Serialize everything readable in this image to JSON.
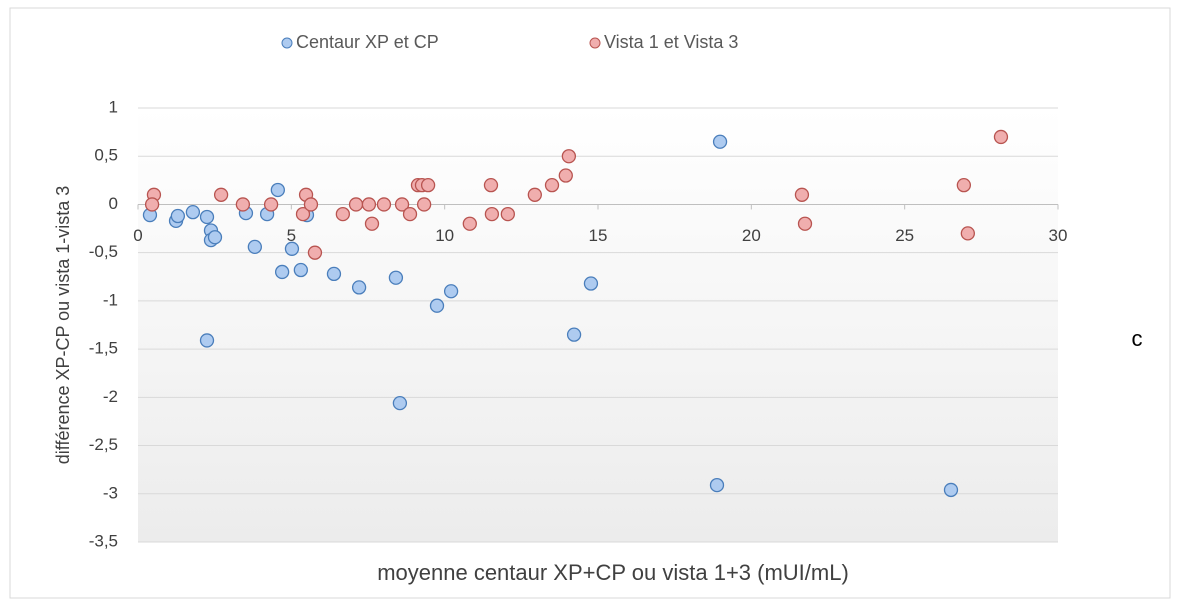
{
  "chart_data": {
    "type": "scatter",
    "xlabel": "moyenne centaur XP+CP ou vista 1+3 (mUI/mL)",
    "ylabel": "différence XP-CP ou vista 1-vista 3",
    "annotation": "c",
    "legend": "top",
    "grid": true,
    "xlim": [
      0,
      30
    ],
    "xticks": [
      0,
      5,
      10,
      15,
      20,
      25,
      30
    ],
    "ylim": [
      -3.5,
      1
    ],
    "yticks": [
      1,
      {
        "value": 0.5,
        "label": "0,5"
      },
      0,
      {
        "value": -0.5,
        "label": "-0,5"
      },
      -1,
      {
        "value": -1.5,
        "label": "-1,5"
      },
      -2,
      {
        "value": -2.5,
        "label": "-2,5"
      },
      -3,
      {
        "value": -3.5,
        "label": "-3,5"
      }
    ],
    "series": [
      {
        "name": "Centaur XP et CP",
        "color": "#aecbf0",
        "edge_color": "#4a7ebb",
        "x": [
          0.39,
          1.24,
          1.3,
          1.79,
          2.25,
          2.38,
          2.38,
          2.51,
          2.25,
          3.52,
          3.81,
          4.21,
          4.56,
          4.7,
          5.02,
          5.31,
          5.51,
          6.39,
          7.21,
          8.41,
          8.54,
          9.75,
          10.21,
          14.22,
          14.77,
          18.88,
          18.98,
          26.51
        ],
        "values": [
          -0.11,
          -0.17,
          -0.12,
          -0.08,
          -0.13,
          -0.27,
          -0.37,
          -0.34,
          -1.41,
          -0.09,
          -0.44,
          -0.1,
          0.15,
          -0.7,
          -0.46,
          -0.68,
          -0.11,
          -0.72,
          -0.86,
          -0.76,
          -2.06,
          -1.05,
          -0.9,
          -1.35,
          -0.82,
          -2.91,
          0.65,
          -2.96
        ]
      },
      {
        "name": "Vista 1 et Vista 3",
        "color": "#f0aeae",
        "edge_color": "#b85450",
        "x": [
          0.52,
          0.46,
          2.71,
          3.42,
          4.34,
          5.38,
          5.48,
          5.64,
          5.77,
          6.68,
          7.11,
          7.53,
          7.63,
          8.02,
          8.61,
          8.87,
          9.13,
          9.26,
          9.33,
          9.46,
          10.82,
          11.51,
          11.54,
          12.06,
          12.94,
          13.5,
          13.95,
          14.05,
          21.65,
          21.75,
          26.93,
          27.06,
          28.14
        ],
        "values": [
          0.1,
          0,
          0.1,
          0,
          0,
          -0.1,
          0.1,
          0,
          -0.5,
          -0.1,
          0,
          0,
          -0.2,
          0,
          0,
          -0.1,
          0.2,
          0.2,
          0,
          0.2,
          -0.2,
          0.2,
          -0.1,
          -0.1,
          0.1,
          0.2,
          0.3,
          0.5,
          0.1,
          -0.2,
          0.2,
          -0.3,
          0.7
        ]
      }
    ]
  }
}
